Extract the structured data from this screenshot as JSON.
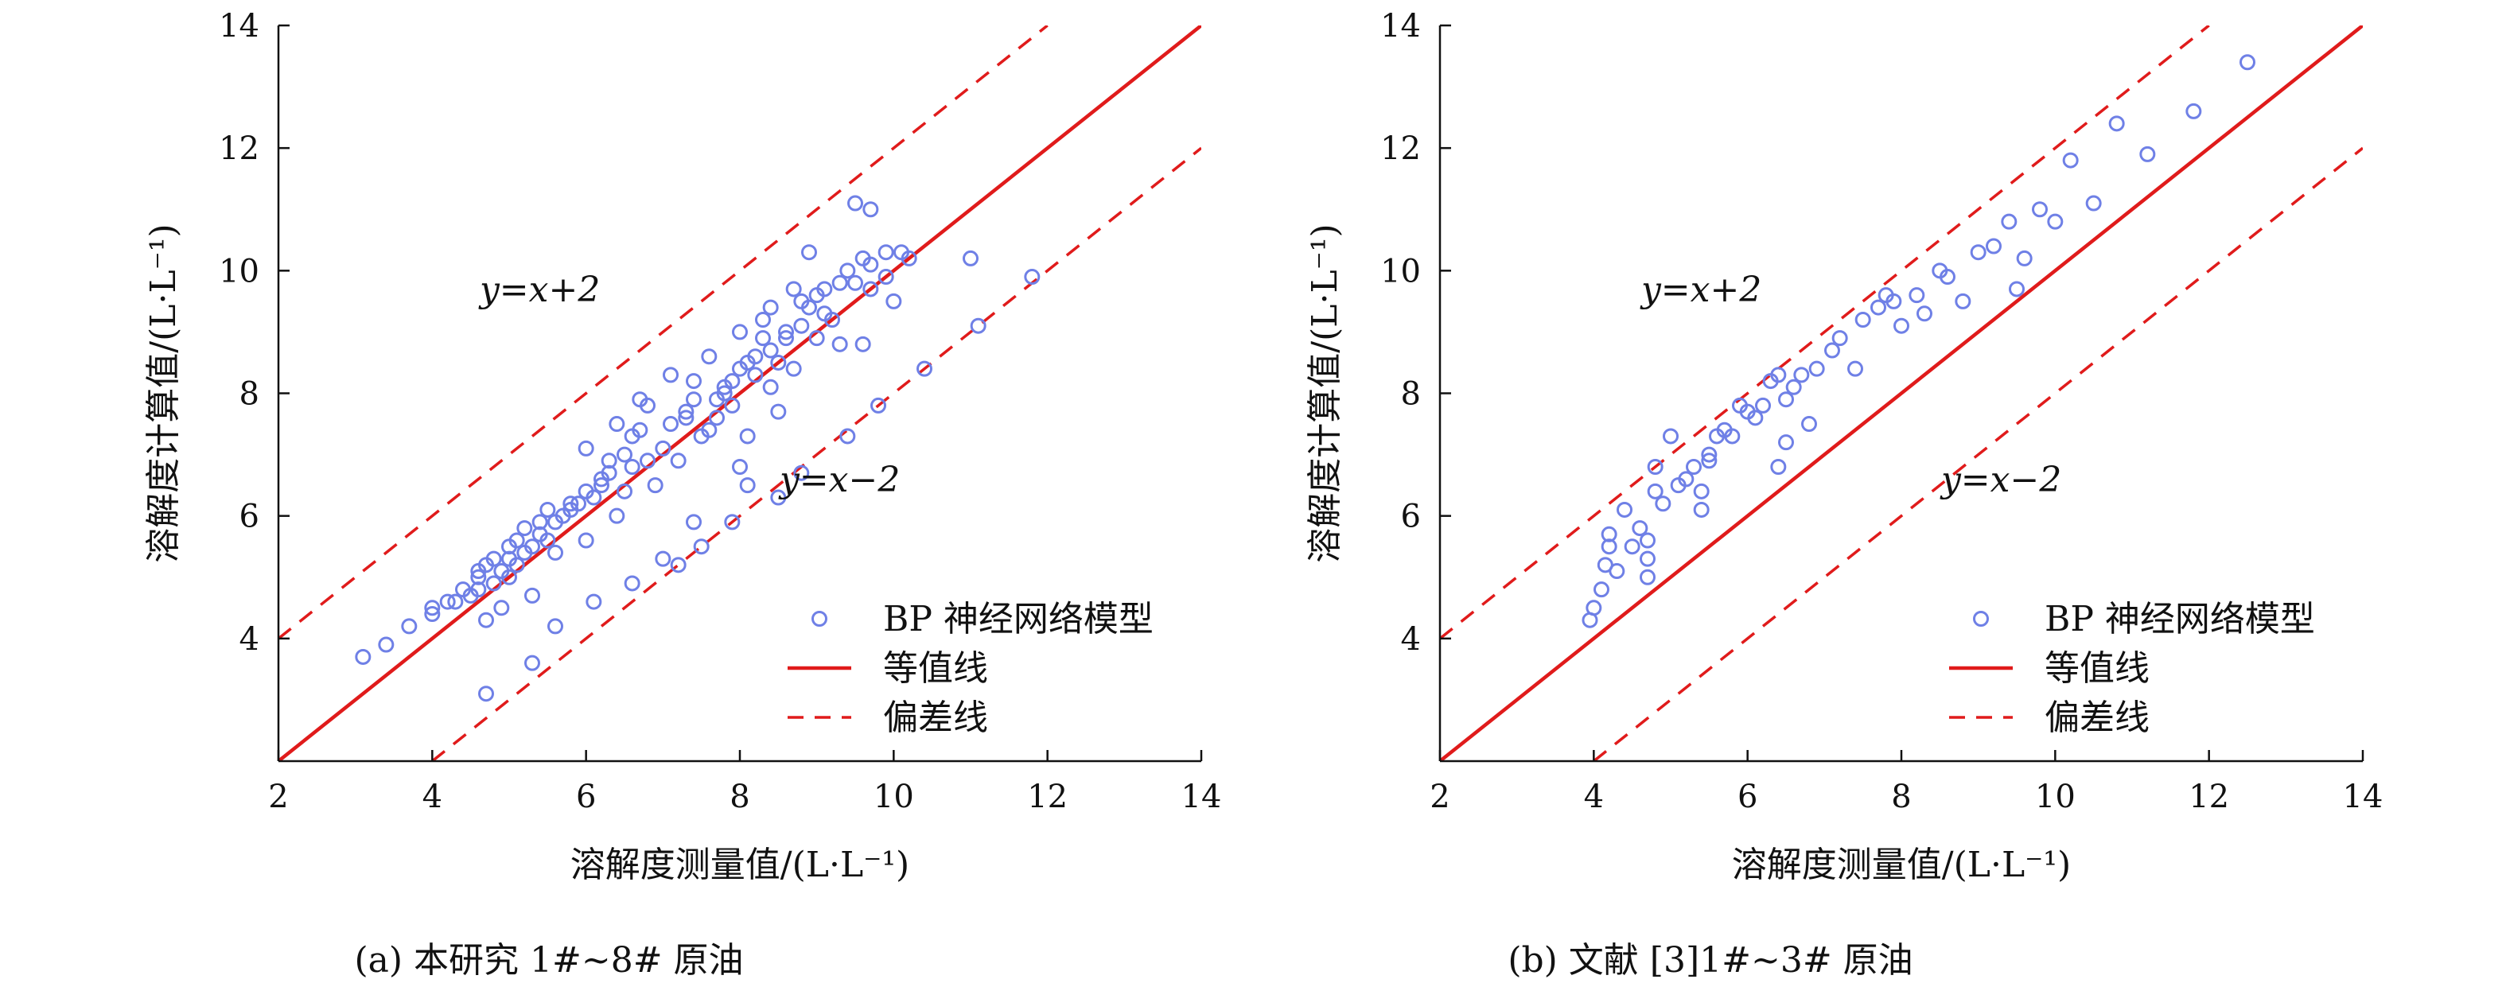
{
  "colors": {
    "points": "#6f80e6",
    "equal_line": "#e01b1b",
    "deviation_line": "#e01b1b",
    "axis": "#111111"
  },
  "chart_data": [
    {
      "type": "scatter",
      "caption": "(a) 本研究 1#~8# 原油",
      "xlabel": "溶解度测量值/(L·L⁻¹)",
      "ylabel": "溶解度计算值/(L·L⁻¹)",
      "xlim": [
        2,
        14
      ],
      "ylim": [
        2,
        14
      ],
      "xticks": [
        2,
        4,
        6,
        8,
        10,
        12,
        14
      ],
      "yticks": [
        4,
        6,
        8,
        10,
        12,
        14
      ],
      "grid": false,
      "legend_position": "bottom-right",
      "legend": {
        "points": "BP 神经网络模型",
        "equal": "等值线",
        "deviation": "偏差线"
      },
      "annotations": [
        {
          "text": "y=x+2",
          "x": 5.4,
          "y": 9.5
        },
        {
          "text": "y=x−2",
          "x": 9.3,
          "y": 6.4
        }
      ],
      "series": [
        {
          "name": "BP 神经网络模型",
          "points": [
            [
              3.1,
              3.7
            ],
            [
              3.4,
              3.9
            ],
            [
              3.7,
              4.2
            ],
            [
              4.0,
              4.4
            ],
            [
              4.0,
              4.5
            ],
            [
              4.2,
              4.6
            ],
            [
              4.3,
              4.6
            ],
            [
              4.4,
              4.8
            ],
            [
              4.5,
              4.7
            ],
            [
              4.6,
              4.8
            ],
            [
              4.6,
              5.0
            ],
            [
              4.6,
              5.1
            ],
            [
              4.7,
              5.2
            ],
            [
              4.7,
              4.3
            ],
            [
              4.7,
              3.1
            ],
            [
              4.8,
              4.9
            ],
            [
              4.8,
              5.3
            ],
            [
              4.9,
              5.1
            ],
            [
              4.9,
              4.5
            ],
            [
              5.0,
              5.3
            ],
            [
              5.0,
              5.5
            ],
            [
              5.0,
              5.0
            ],
            [
              5.1,
              5.6
            ],
            [
              5.1,
              5.2
            ],
            [
              5.2,
              5.4
            ],
            [
              5.2,
              5.8
            ],
            [
              5.3,
              5.5
            ],
            [
              5.3,
              4.7
            ],
            [
              5.3,
              3.6
            ],
            [
              5.4,
              5.7
            ],
            [
              5.4,
              5.9
            ],
            [
              5.5,
              6.1
            ],
            [
              5.5,
              5.6
            ],
            [
              5.6,
              5.9
            ],
            [
              5.6,
              5.4
            ],
            [
              5.6,
              4.2
            ],
            [
              5.7,
              6.0
            ],
            [
              5.8,
              6.1
            ],
            [
              5.8,
              6.2
            ],
            [
              5.9,
              6.2
            ],
            [
              6.0,
              6.4
            ],
            [
              6.0,
              7.1
            ],
            [
              6.0,
              5.6
            ],
            [
              6.1,
              6.3
            ],
            [
              6.1,
              4.6
            ],
            [
              6.2,
              6.5
            ],
            [
              6.2,
              6.6
            ],
            [
              6.3,
              6.7
            ],
            [
              6.3,
              6.9
            ],
            [
              6.4,
              7.5
            ],
            [
              6.4,
              6.0
            ],
            [
              6.5,
              6.4
            ],
            [
              6.5,
              7.0
            ],
            [
              6.6,
              6.8
            ],
            [
              6.6,
              7.3
            ],
            [
              6.6,
              4.9
            ],
            [
              6.7,
              7.4
            ],
            [
              6.7,
              7.9
            ],
            [
              6.8,
              6.9
            ],
            [
              6.8,
              7.8
            ],
            [
              6.9,
              6.5
            ],
            [
              7.0,
              7.1
            ],
            [
              7.0,
              5.3
            ],
            [
              7.1,
              7.5
            ],
            [
              7.1,
              8.3
            ],
            [
              7.2,
              6.9
            ],
            [
              7.2,
              5.2
            ],
            [
              7.3,
              7.7
            ],
            [
              7.3,
              7.6
            ],
            [
              7.4,
              7.9
            ],
            [
              7.4,
              8.2
            ],
            [
              7.4,
              5.9
            ],
            [
              7.5,
              7.3
            ],
            [
              7.5,
              5.5
            ],
            [
              7.6,
              7.4
            ],
            [
              7.6,
              8.6
            ],
            [
              7.7,
              7.9
            ],
            [
              7.7,
              7.6
            ],
            [
              7.8,
              8.0
            ],
            [
              7.8,
              8.1
            ],
            [
              7.9,
              8.2
            ],
            [
              7.9,
              7.8
            ],
            [
              7.9,
              5.9
            ],
            [
              8.0,
              8.4
            ],
            [
              8.0,
              9.0
            ],
            [
              8.0,
              6.8
            ],
            [
              8.1,
              8.5
            ],
            [
              8.1,
              7.3
            ],
            [
              8.1,
              6.5
            ],
            [
              8.2,
              8.6
            ],
            [
              8.2,
              8.3
            ],
            [
              8.3,
              8.9
            ],
            [
              8.3,
              9.2
            ],
            [
              8.4,
              8.7
            ],
            [
              8.4,
              8.1
            ],
            [
              8.4,
              9.4
            ],
            [
              8.5,
              8.5
            ],
            [
              8.5,
              7.7
            ],
            [
              8.5,
              6.3
            ],
            [
              8.6,
              9.0
            ],
            [
              8.6,
              8.9
            ],
            [
              8.7,
              9.7
            ],
            [
              8.7,
              8.4
            ],
            [
              8.8,
              9.1
            ],
            [
              8.8,
              9.5
            ],
            [
              8.8,
              6.7
            ],
            [
              8.9,
              9.4
            ],
            [
              8.9,
              10.3
            ],
            [
              9.0,
              9.6
            ],
            [
              9.0,
              8.9
            ],
            [
              9.1,
              9.3
            ],
            [
              9.1,
              9.7
            ],
            [
              9.2,
              9.2
            ],
            [
              9.3,
              9.8
            ],
            [
              9.3,
              8.8
            ],
            [
              9.4,
              10.0
            ],
            [
              9.4,
              7.3
            ],
            [
              9.5,
              9.8
            ],
            [
              9.5,
              11.1
            ],
            [
              9.6,
              10.2
            ],
            [
              9.6,
              8.8
            ],
            [
              9.7,
              11.0
            ],
            [
              9.7,
              10.1
            ],
            [
              9.7,
              9.7
            ],
            [
              9.8,
              7.8
            ],
            [
              9.9,
              10.3
            ],
            [
              9.9,
              9.9
            ],
            [
              10.0,
              9.5
            ],
            [
              10.1,
              10.3
            ],
            [
              10.2,
              10.2
            ],
            [
              10.4,
              8.4
            ],
            [
              11.0,
              10.2
            ],
            [
              11.1,
              9.1
            ],
            [
              11.8,
              9.9
            ]
          ]
        },
        {
          "name": "等值线",
          "line": [
            [
              2,
              2
            ],
            [
              14,
              14
            ]
          ]
        },
        {
          "name": "偏差线",
          "line": [
            [
              2,
              4
            ],
            [
              12,
              14
            ]
          ]
        },
        {
          "name": "偏差线",
          "line": [
            [
              4,
              2
            ],
            [
              14,
              12
            ]
          ]
        }
      ]
    },
    {
      "type": "scatter",
      "caption": "(b) 文献 [3]1#~3# 原油",
      "xlabel": "溶解度测量值/(L·L⁻¹)",
      "ylabel": "溶解度计算值/(L·L⁻¹)",
      "xlim": [
        2,
        14
      ],
      "ylim": [
        2,
        14
      ],
      "xticks": [
        2,
        4,
        6,
        8,
        10,
        12,
        14
      ],
      "yticks": [
        4,
        6,
        8,
        10,
        12,
        14
      ],
      "grid": false,
      "legend_position": "bottom-right",
      "legend": {
        "points": "BP 神经网络模型",
        "equal": "等值线",
        "deviation": "偏差线"
      },
      "annotations": [
        {
          "text": "y=x+2",
          "x": 5.4,
          "y": 9.5
        },
        {
          "text": "y=x−2",
          "x": 9.3,
          "y": 6.4
        }
      ],
      "series": [
        {
          "name": "BP 神经网络模型",
          "points": [
            [
              3.95,
              4.3
            ],
            [
              4.0,
              4.5
            ],
            [
              4.1,
              4.8
            ],
            [
              4.15,
              5.2
            ],
            [
              4.2,
              5.5
            ],
            [
              4.2,
              5.7
            ],
            [
              4.3,
              5.1
            ],
            [
              4.4,
              6.1
            ],
            [
              4.5,
              5.5
            ],
            [
              4.6,
              5.8
            ],
            [
              4.7,
              5.0
            ],
            [
              4.7,
              5.3
            ],
            [
              4.7,
              5.6
            ],
            [
              4.8,
              6.4
            ],
            [
              4.8,
              6.8
            ],
            [
              4.9,
              6.2
            ],
            [
              5.0,
              7.3
            ],
            [
              5.1,
              6.5
            ],
            [
              5.2,
              6.6
            ],
            [
              5.3,
              6.8
            ],
            [
              5.4,
              6.1
            ],
            [
              5.4,
              6.4
            ],
            [
              5.5,
              6.9
            ],
            [
              5.5,
              7.0
            ],
            [
              5.6,
              7.3
            ],
            [
              5.7,
              7.4
            ],
            [
              5.8,
              7.3
            ],
            [
              5.9,
              7.8
            ],
            [
              6.0,
              7.7
            ],
            [
              6.1,
              7.6
            ],
            [
              6.2,
              7.8
            ],
            [
              6.3,
              8.2
            ],
            [
              6.4,
              8.3
            ],
            [
              6.4,
              6.8
            ],
            [
              6.5,
              7.9
            ],
            [
              6.5,
              7.2
            ],
            [
              6.6,
              8.1
            ],
            [
              6.7,
              8.3
            ],
            [
              6.8,
              7.5
            ],
            [
              6.9,
              8.4
            ],
            [
              7.1,
              8.7
            ],
            [
              7.2,
              8.9
            ],
            [
              7.4,
              8.4
            ],
            [
              7.5,
              9.2
            ],
            [
              7.7,
              9.4
            ],
            [
              7.8,
              9.6
            ],
            [
              7.9,
              9.5
            ],
            [
              8.0,
              9.1
            ],
            [
              8.2,
              9.6
            ],
            [
              8.3,
              9.3
            ],
            [
              8.5,
              10.0
            ],
            [
              8.6,
              9.9
            ],
            [
              8.8,
              9.5
            ],
            [
              9.0,
              10.3
            ],
            [
              9.2,
              10.4
            ],
            [
              9.4,
              10.8
            ],
            [
              9.5,
              9.7
            ],
            [
              9.6,
              10.2
            ],
            [
              9.8,
              11.0
            ],
            [
              10.0,
              10.8
            ],
            [
              10.2,
              11.8
            ],
            [
              10.5,
              11.1
            ],
            [
              10.8,
              12.4
            ],
            [
              11.2,
              11.9
            ],
            [
              11.8,
              12.6
            ],
            [
              12.5,
              13.4
            ]
          ]
        },
        {
          "name": "等值线",
          "line": [
            [
              2,
              2
            ],
            [
              14,
              14
            ]
          ]
        },
        {
          "name": "偏差线",
          "line": [
            [
              2,
              4
            ],
            [
              12,
              14
            ]
          ]
        },
        {
          "name": "偏差线",
          "line": [
            [
              4,
              2
            ],
            [
              14,
              12
            ]
          ]
        }
      ]
    }
  ]
}
